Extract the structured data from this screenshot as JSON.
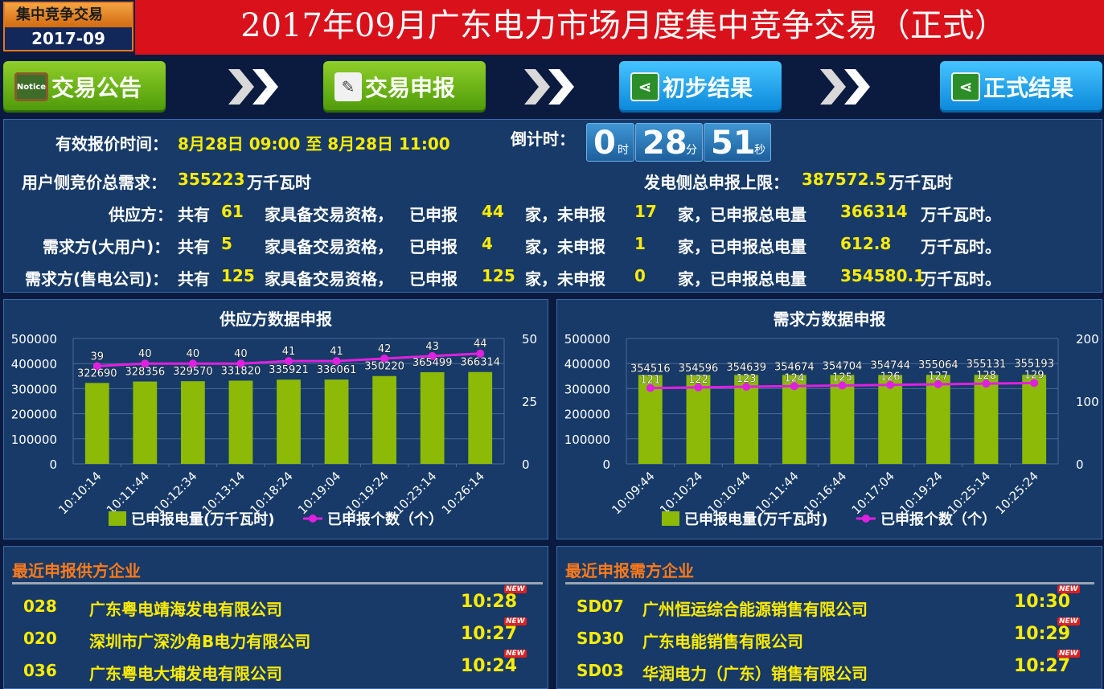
{
  "header": {
    "badge_top": "集中竞争交易",
    "badge_bottom": "2017-09",
    "title": "2017年09月广东电力市场月度集中竞争交易（正式）"
  },
  "nav": {
    "steps": [
      {
        "label": "交易公告",
        "icon": "notice-board-icon",
        "style": "green"
      },
      {
        "label": "交易申报",
        "icon": "document-edit-icon",
        "style": "green"
      },
      {
        "label": "初步结果",
        "icon": "share-icon",
        "style": "blue"
      },
      {
        "label": "正式结果",
        "icon": "share-icon",
        "style": "blue"
      }
    ],
    "notice_icon_text": "Notice"
  },
  "info": {
    "valid_time_label": "有效报价时间：",
    "valid_time_value": "8月28日 09:00 至 8月28日 11:00",
    "countdown_label": "倒计时：",
    "countdown": {
      "h": "0",
      "h_unit": "时",
      "m": "28",
      "m_unit": "分",
      "s": "51",
      "s_unit": "秒"
    },
    "demand_total_label": "用户侧竞价总需求：",
    "demand_total_value": "355223",
    "demand_total_unit": "万千瓦时",
    "supply_cap_label": "发电侧总申报上限：",
    "supply_cap_value": "387572.5",
    "supply_cap_unit": "万千瓦时",
    "rows": [
      {
        "label": "供应方：",
        "total": "61",
        "declared": "44",
        "undeclared": "17",
        "amount": "366314"
      },
      {
        "label": "需求方(大用户)：",
        "total": "5",
        "declared": "4",
        "undeclared": "1",
        "amount": "612.8"
      },
      {
        "label": "需求方(售电公司)：",
        "total": "125",
        "declared": "125",
        "undeclared": "0",
        "amount": "354580.1"
      }
    ],
    "t_gongyou": "共有",
    "t_jiaju": "家具备交易资格，",
    "t_yishen": "已申报",
    "t_jia_weishen": "家，未申报",
    "t_jia_zong": "家，已申报总电量",
    "t_unit_end": "万千瓦时。"
  },
  "chart_data": [
    {
      "type": "bar",
      "title": "供应方数据申报",
      "categories": [
        "10:10:14",
        "10:11:44",
        "10:12:34",
        "10:13:14",
        "10:18:24",
        "10:19:04",
        "10:19:24",
        "10:23:14",
        "10:26:14"
      ],
      "series": [
        {
          "name": "已申报电量(万千瓦时)",
          "type": "bar",
          "axis": "left",
          "values": [
            322690,
            328356,
            329570,
            331820,
            335921,
            336061,
            350220,
            365499,
            366314
          ]
        },
        {
          "name": "已申报个数（个）",
          "type": "line",
          "axis": "right",
          "values": [
            39,
            40,
            40,
            40,
            41,
            41,
            42,
            43,
            44
          ]
        }
      ],
      "ylim": [
        0,
        500000
      ],
      "y_ticks": [
        "500000",
        "400000",
        "300000",
        "200000",
        "100000",
        "0"
      ],
      "y2lim": [
        0,
        50
      ],
      "y2_ticks": [
        "50",
        "25",
        "0"
      ],
      "bar_color": "#8cba06",
      "line_color": "#e020e0",
      "grid": true,
      "legend": "bottom"
    },
    {
      "type": "bar",
      "title": "需求方数据申报",
      "categories": [
        "10:09:44",
        "10:10:24",
        "10:10:44",
        "10:11:44",
        "10:16:44",
        "10:17:04",
        "10:19:24",
        "10:25:14",
        "10:25:24"
      ],
      "series": [
        {
          "name": "已申报电量(万千瓦时)",
          "type": "bar",
          "axis": "left",
          "values": [
            354516,
            354596,
            354639,
            354674,
            354704,
            354744,
            355064,
            355131,
            355193
          ]
        },
        {
          "name": "已申报个数（个）",
          "type": "line",
          "axis": "right",
          "values": [
            121,
            122,
            123,
            124,
            125,
            126,
            127,
            128,
            129
          ]
        }
      ],
      "ylim": [
        0,
        500000
      ],
      "y_ticks": [
        "500000",
        "400000",
        "300000",
        "200000",
        "100000",
        "0"
      ],
      "y2lim": [
        0,
        200
      ],
      "y2_ticks": [
        "200",
        "100",
        "0"
      ],
      "bar_color": "#8cba06",
      "line_color": "#e020e0",
      "grid": true,
      "legend": "bottom"
    }
  ],
  "supply_list": {
    "title": "最近申报供方企业",
    "new_label": "NEW",
    "items": [
      {
        "code": "028",
        "name": "广东粤电靖海发电有限公司",
        "time": "10:28"
      },
      {
        "code": "020",
        "name": "深圳市广深沙角B电力有限公司",
        "time": "10:27"
      },
      {
        "code": "036",
        "name": "广东粤电大埔发电有限公司",
        "time": "10:24"
      }
    ]
  },
  "demand_list": {
    "title": "最近申报需方企业",
    "new_label": "NEW",
    "items": [
      {
        "code": "SD07",
        "name": "广州恒运综合能源销售有限公司",
        "time": "10:30"
      },
      {
        "code": "SD30",
        "name": "广东电能销售有限公司",
        "time": "10:29"
      },
      {
        "code": "SD03",
        "name": "华润电力（广东）销售有限公司",
        "time": "10:27"
      }
    ]
  }
}
